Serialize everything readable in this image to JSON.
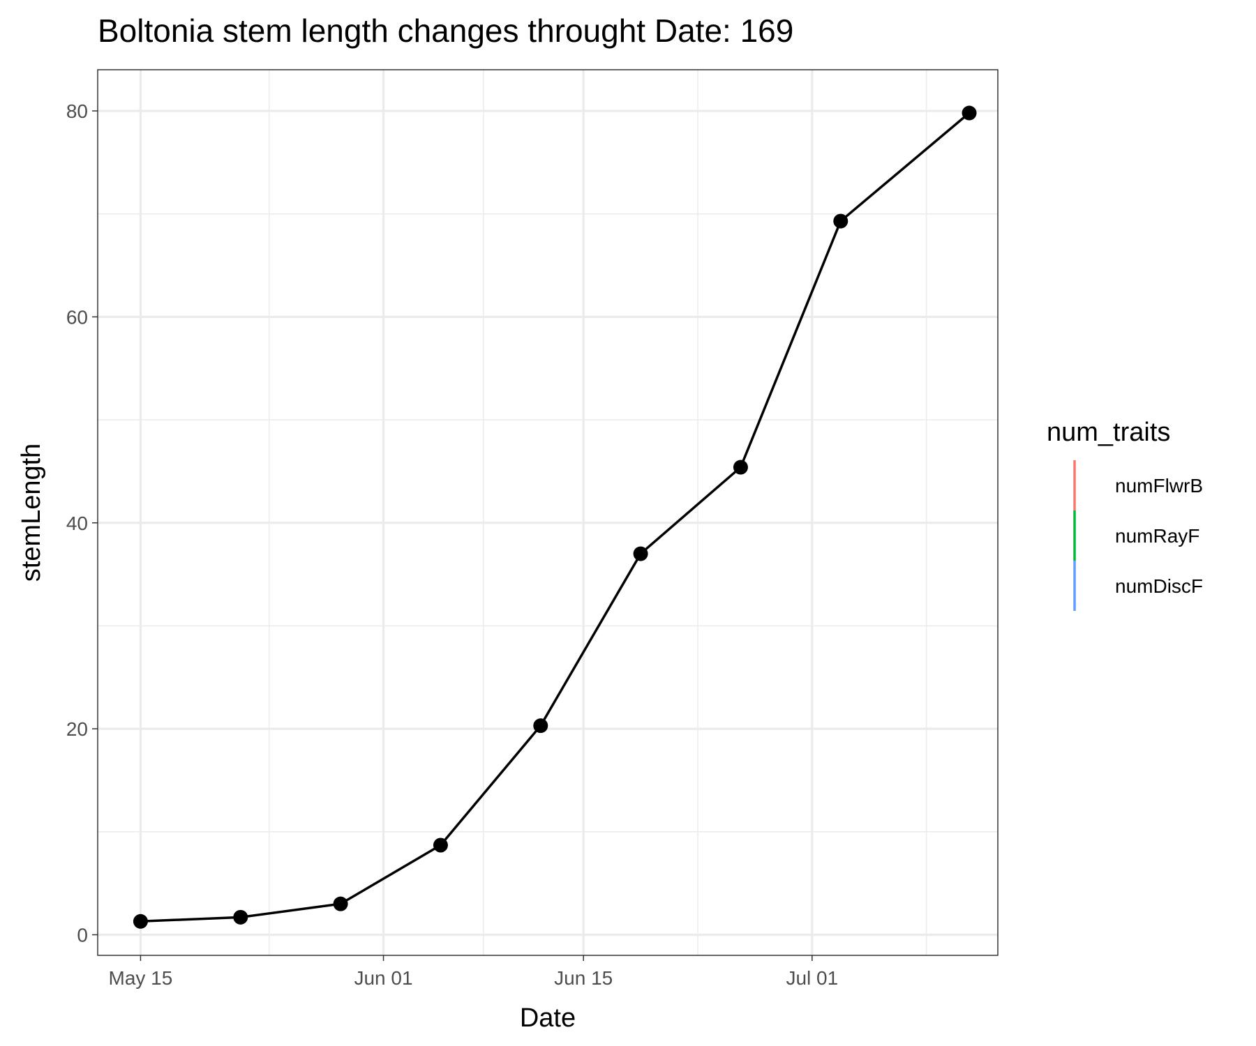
{
  "chart_data": {
    "type": "line",
    "title": "Boltonia stem length changes throught Date:  169",
    "xlabel": "Date",
    "ylabel": "stemLength",
    "x_ticks": [
      {
        "date": "2023-05-15",
        "label": "May 15"
      },
      {
        "date": "2023-06-01",
        "label": "Jun 01"
      },
      {
        "date": "2023-06-15",
        "label": "Jun 15"
      },
      {
        "date": "2023-07-01",
        "label": "Jul 01"
      }
    ],
    "x_minor_ticks": [
      "2023-05-24",
      "2023-06-08",
      "2023-06-23",
      "2023-07-09"
    ],
    "xlim": [
      "2023-05-12",
      "2023-07-14"
    ],
    "y_ticks": [
      0,
      20,
      40,
      60,
      80
    ],
    "y_minor_ticks": [
      10,
      30,
      50,
      70
    ],
    "ylim": [
      -2,
      84
    ],
    "grid": true,
    "series": [
      {
        "color": "#000000",
        "points": [
          {
            "x": "2023-05-15",
            "y": 1.3
          },
          {
            "x": "2023-05-22",
            "y": 1.7
          },
          {
            "x": "2023-05-29",
            "y": 3.0
          },
          {
            "x": "2023-06-05",
            "y": 8.7
          },
          {
            "x": "2023-06-12",
            "y": 20.3
          },
          {
            "x": "2023-06-19",
            "y": 37.0
          },
          {
            "x": "2023-06-26",
            "y": 45.4
          },
          {
            "x": "2023-07-03",
            "y": 69.3
          },
          {
            "x": "2023-07-12",
            "y": 79.8
          }
        ]
      }
    ],
    "legend": {
      "title": "num_traits",
      "position": "right",
      "entries": [
        {
          "label": "numFlwrB",
          "color": "#F8766D"
        },
        {
          "label": "numRayF",
          "color": "#00BA38"
        },
        {
          "label": "numDiscF",
          "color": "#619CFF"
        }
      ]
    }
  }
}
